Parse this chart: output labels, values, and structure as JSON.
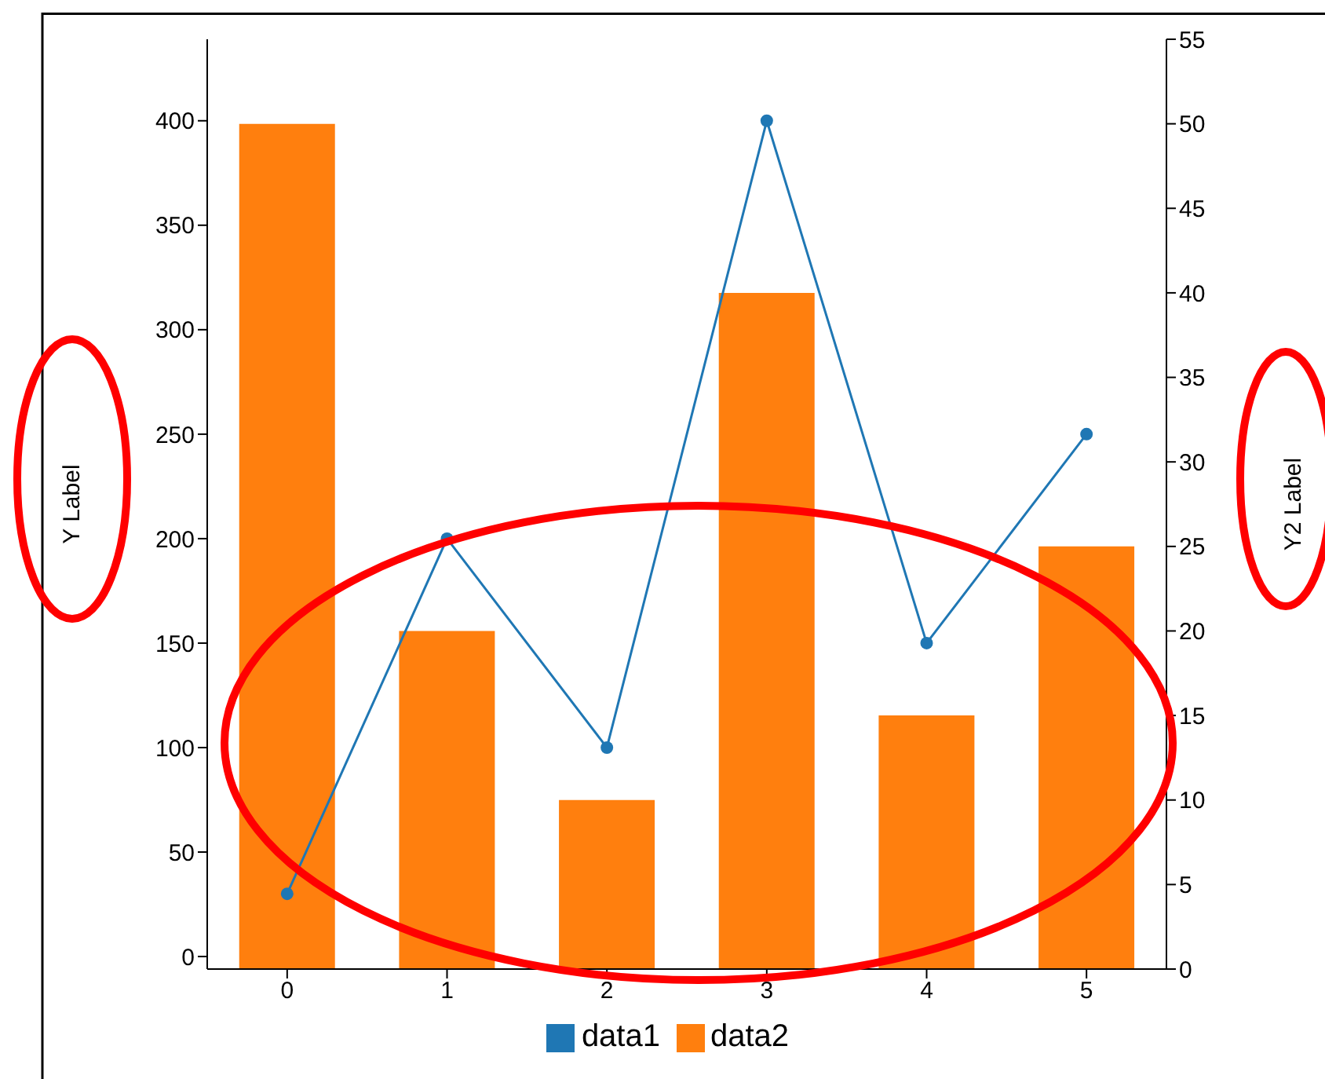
{
  "chart_data": {
    "type": "bar",
    "ylabel": "Y Label",
    "y2label": "Y2 Label",
    "categories": [
      "0",
      "1",
      "2",
      "3",
      "4",
      "5"
    ],
    "series": [
      {
        "name": "data1",
        "type": "line",
        "color": "#1f77b4",
        "values": [
          30,
          200,
          100,
          400,
          150,
          250
        ]
      },
      {
        "name": "data2",
        "axis": "y2",
        "color": "#ff7f0e",
        "values": [
          50,
          20,
          10,
          40,
          15,
          25
        ]
      }
    ],
    "ylim": [
      -6,
      439
    ],
    "yticks": [
      0,
      50,
      100,
      150,
      200,
      250,
      300,
      350,
      400
    ],
    "y2lim": [
      0,
      55
    ],
    "y2ticks": [
      0,
      5,
      10,
      15,
      20,
      25,
      30,
      35,
      40,
      45,
      50,
      55
    ],
    "legend": "bottom",
    "marker": "circle",
    "grid": false
  }
}
